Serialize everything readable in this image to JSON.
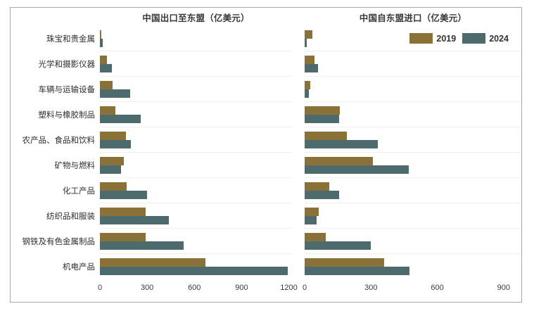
{
  "legend": {
    "items": [
      {
        "label": "2019",
        "color": "#8a7138"
      },
      {
        "label": "2024",
        "color": "#4d6b6d"
      }
    ]
  },
  "colors": {
    "series_2019": "#8a7138",
    "series_2024": "#4d6b6d",
    "frame_border": "#a9a9a9",
    "gridline": "#f1efec",
    "text": "#2e2e2e"
  },
  "chart_data": [
    {
      "type": "bar",
      "orientation": "horizontal",
      "title": "中国出口至东盟（亿美元）",
      "unit": "亿美元",
      "categories": [
        "珠宝和贵金属",
        "光学和摄影仪器",
        "车辆与运输设备",
        "塑料与橡胶制品",
        "农产品、食品和饮料",
        "矿物与燃料",
        "化工产品",
        "纺织品和服装",
        "钢铁及有色金属制品",
        "机电产品"
      ],
      "series": [
        {
          "name": "2019",
          "color": "#8a7138",
          "values": [
            10,
            45,
            80,
            100,
            165,
            150,
            170,
            290,
            290,
            670
          ]
        },
        {
          "name": "2024",
          "color": "#4d6b6d",
          "values": [
            20,
            75,
            190,
            260,
            195,
            135,
            300,
            440,
            530,
            1195
          ]
        }
      ],
      "xticks": [
        0,
        300,
        600,
        900,
        1200
      ],
      "xlim": [
        0,
        1220
      ],
      "grid": "horizontal-faint",
      "legend_position": "none"
    },
    {
      "type": "bar",
      "orientation": "horizontal",
      "title": "中国自东盟进口（亿美元）",
      "unit": "亿美元",
      "categories": [
        "珠宝和贵金属",
        "光学和摄影仪器",
        "车辆与运输设备",
        "塑料与橡胶制品",
        "农产品、食品和饮料",
        "矿物与燃料",
        "化工产品",
        "纺织品和服装",
        "钢铁及有色金属制品",
        "机电产品"
      ],
      "series": [
        {
          "name": "2019",
          "color": "#8a7138",
          "values": [
            35,
            45,
            25,
            160,
            190,
            310,
            110,
            65,
            95,
            360
          ]
        },
        {
          "name": "2024",
          "color": "#4d6b6d",
          "values": [
            10,
            60,
            20,
            155,
            330,
            470,
            155,
            55,
            300,
            475
          ]
        }
      ],
      "xticks": [
        0,
        300,
        600,
        900
      ],
      "xlim": [
        0,
        980
      ],
      "grid": "horizontal-faint",
      "legend_position": "top-right"
    }
  ]
}
